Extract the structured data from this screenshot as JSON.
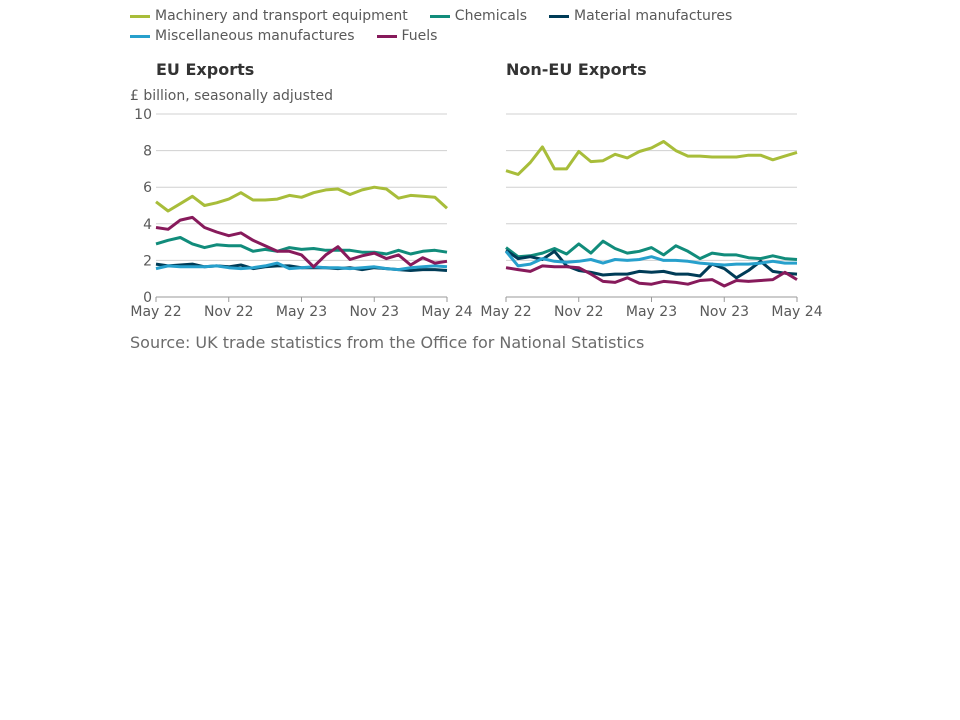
{
  "chart_data": [
    {
      "type": "line",
      "title": "EU Exports",
      "ylabel": "£ billion, seasonally adjusted",
      "ylim": [
        0,
        10
      ],
      "yticks": [
        "0",
        "2",
        "4",
        "6",
        "8",
        "10"
      ],
      "x_tick_labels": [
        "May 22",
        "Nov 22",
        "May 23",
        "Nov 23",
        "May 24"
      ],
      "grid": "horizontal",
      "series": [
        {
          "name": "Machinery and transport equipment",
          "color": "#a8bd3a",
          "values": [
            5.2,
            4.7,
            5.1,
            5.5,
            5.0,
            5.15,
            5.35,
            5.7,
            5.3,
            5.3,
            5.35,
            5.55,
            5.45,
            5.7,
            5.85,
            5.9,
            5.6,
            5.85,
            6.0,
            5.9,
            5.4,
            5.55,
            5.5,
            5.45,
            4.85
          ]
        },
        {
          "name": "Chemicals",
          "color": "#118c7b",
          "values": [
            2.9,
            3.1,
            3.25,
            2.9,
            2.7,
            2.85,
            2.8,
            2.8,
            2.5,
            2.6,
            2.5,
            2.7,
            2.6,
            2.65,
            2.55,
            2.55,
            2.55,
            2.45,
            2.45,
            2.35,
            2.55,
            2.35,
            2.5,
            2.55,
            2.45
          ]
        },
        {
          "name": "Material manufactures",
          "color": "#003c57",
          "values": [
            1.8,
            1.7,
            1.75,
            1.8,
            1.65,
            1.7,
            1.65,
            1.75,
            1.55,
            1.65,
            1.7,
            1.7,
            1.6,
            1.6,
            1.6,
            1.55,
            1.6,
            1.5,
            1.6,
            1.55,
            1.5,
            1.45,
            1.5,
            1.5,
            1.45
          ]
        },
        {
          "name": "Miscellaneous manufactures",
          "color": "#27a0cc",
          "values": [
            1.55,
            1.7,
            1.65,
            1.65,
            1.65,
            1.7,
            1.6,
            1.55,
            1.6,
            1.7,
            1.85,
            1.55,
            1.6,
            1.65,
            1.6,
            1.6,
            1.55,
            1.6,
            1.65,
            1.55,
            1.5,
            1.6,
            1.65,
            1.7,
            1.65
          ]
        },
        {
          "name": "Fuels",
          "color": "#871a5b",
          "values": [
            3.8,
            3.7,
            4.2,
            4.35,
            3.8,
            3.55,
            3.35,
            3.5,
            3.1,
            2.8,
            2.5,
            2.5,
            2.3,
            1.65,
            2.3,
            2.75,
            2.05,
            2.25,
            2.4,
            2.1,
            2.3,
            1.75,
            2.15,
            1.85,
            1.95
          ]
        }
      ]
    },
    {
      "type": "line",
      "title": "Non-EU Exports",
      "ylim": [
        0,
        10
      ],
      "x_tick_labels": [
        "May 22",
        "Nov 22",
        "May 23",
        "Nov 23",
        "May 24"
      ],
      "grid": "horizontal",
      "series": [
        {
          "name": "Machinery and transport equipment",
          "color": "#a8bd3a",
          "values": [
            6.9,
            6.7,
            7.35,
            8.2,
            7.0,
            7.0,
            7.95,
            7.4,
            7.45,
            7.8,
            7.6,
            7.95,
            8.15,
            8.5,
            8.0,
            7.7,
            7.7,
            7.65,
            7.65,
            7.65,
            7.75,
            7.75,
            7.5,
            7.7,
            7.9
          ]
        },
        {
          "name": "Chemicals",
          "color": "#118c7b",
          "values": [
            2.7,
            2.2,
            2.25,
            2.4,
            2.65,
            2.35,
            2.9,
            2.4,
            3.05,
            2.65,
            2.4,
            2.5,
            2.7,
            2.3,
            2.8,
            2.5,
            2.1,
            2.4,
            2.3,
            2.3,
            2.15,
            2.1,
            2.25,
            2.1,
            2.05
          ]
        },
        {
          "name": "Material manufactures",
          "color": "#003c57",
          "values": [
            2.55,
            2.1,
            2.2,
            2.05,
            2.5,
            1.7,
            1.45,
            1.35,
            1.2,
            1.25,
            1.25,
            1.4,
            1.35,
            1.4,
            1.25,
            1.25,
            1.15,
            1.8,
            1.55,
            1.05,
            1.45,
            1.95,
            1.4,
            1.3,
            1.25
          ]
        },
        {
          "name": "Miscellaneous manufactures",
          "color": "#27a0cc",
          "values": [
            2.5,
            1.7,
            1.8,
            2.1,
            1.95,
            1.9,
            1.95,
            2.05,
            1.85,
            2.05,
            2.0,
            2.05,
            2.2,
            2.0,
            2.0,
            1.95,
            1.85,
            1.8,
            1.75,
            1.8,
            1.8,
            1.85,
            1.95,
            1.85,
            1.85
          ]
        },
        {
          "name": "Fuels",
          "color": "#871a5b",
          "values": [
            1.6,
            1.5,
            1.4,
            1.7,
            1.65,
            1.65,
            1.6,
            1.25,
            0.85,
            0.8,
            1.05,
            0.75,
            0.7,
            0.85,
            0.8,
            0.7,
            0.9,
            0.95,
            0.6,
            0.9,
            0.85,
            0.9,
            0.95,
            1.35,
            0.95
          ]
        }
      ]
    }
  ],
  "legend": [
    [
      {
        "label": "Machinery and transport equipment",
        "color": "#a8bd3a"
      },
      {
        "label": "Chemicals",
        "color": "#118c7b"
      },
      {
        "label": "Material manufactures",
        "color": "#003c57"
      }
    ],
    [
      {
        "label": "Miscellaneous manufactures",
        "color": "#27a0cc"
      },
      {
        "label": "Fuels",
        "color": "#871a5b"
      }
    ]
  ],
  "source": "Source: UK trade statistics from the Office for National Statistics"
}
